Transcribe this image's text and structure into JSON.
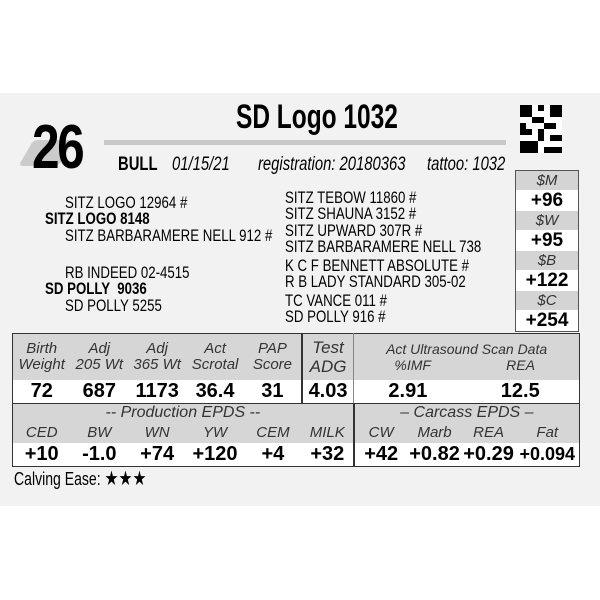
{
  "lot_number": "26",
  "title": "SD Logo 1032",
  "info": {
    "sex": "BULL",
    "birth_date": "01/15/21",
    "registration_label": "registration:",
    "registration": "20180363",
    "tattoo_label": "tattoo:",
    "tattoo": "1032"
  },
  "indexes": [
    {
      "label": "$M",
      "value": "+96"
    },
    {
      "label": "$W",
      "value": "+95"
    },
    {
      "label": "$B",
      "value": "+122"
    },
    {
      "label": "$C",
      "value": "+254"
    }
  ],
  "pedigree": {
    "sire": "SITZ LOGO 8148",
    "sire_sire": "SITZ LOGO 12964 #",
    "sire_dam": "SITZ BARBARAMERE NELL 912 #",
    "dam": "SD POLLY  9036",
    "dam_sire": "RB INDEED 02-4515",
    "dam_dam": "SD POLLY 5255",
    "outer": [
      "SITZ TEBOW 11860 #",
      "SITZ SHAUNA 3152 #",
      "SITZ UPWARD 307R #",
      "SITZ BARBARAMERE NELL 738",
      "K C F BENNETT ABSOLUTE #",
      "R B LADY STANDARD 305-02",
      "TC VANCE 011 #",
      "SD POLLY 916 #"
    ]
  },
  "performance": {
    "headers": [
      [
        "Birth",
        "Weight"
      ],
      [
        "Adj",
        "205 Wt"
      ],
      [
        "Adj",
        "365 Wt"
      ],
      [
        "Act",
        "Scrotal"
      ],
      [
        "PAP",
        "Score"
      ],
      [
        "Test",
        "ADG"
      ]
    ],
    "ultrasound_title": "Act Ultrasound Scan Data",
    "ultrasound_headers": [
      "%IMF",
      "REA"
    ],
    "values": [
      "72",
      "687",
      "1173",
      "36.4",
      "31",
      "4.03",
      "2.91",
      "12.5"
    ]
  },
  "epds": {
    "production_title": "-- Production EPDS --",
    "carcass_title": "– Carcass EPDS –",
    "labels": [
      "CED",
      "BW",
      "WN",
      "YW",
      "CEM",
      "MILK",
      "CW",
      "Marb",
      "REA",
      "Fat"
    ],
    "values": [
      "+10",
      "-1.0",
      "+74",
      "+120",
      "+4",
      "+32",
      "+42",
      "+0.82",
      "+0.29",
      "+0.094"
    ]
  },
  "calving_ease": {
    "label": "Calving Ease:",
    "stars": 3,
    "stars_text": "★★★"
  }
}
